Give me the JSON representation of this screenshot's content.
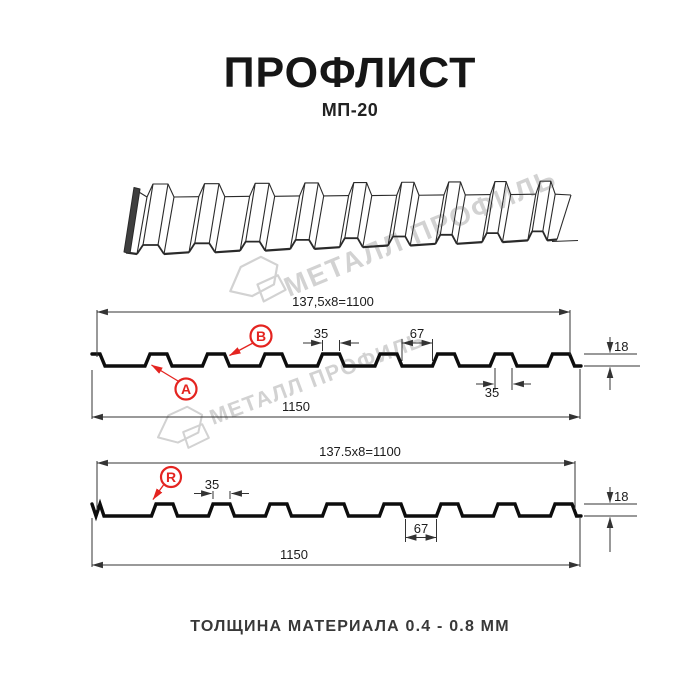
{
  "header": {
    "title": "ПРОФЛИСТ",
    "subtitle": "МП-20"
  },
  "watermark": {
    "text": "МЕТАЛЛ ПРОФИЛЬ"
  },
  "section_top": {
    "modules": "137,5x8=1100",
    "overall": "1150",
    "crest_top": "35",
    "valley": "67",
    "height": "18",
    "crest_base": "35",
    "label_a": "A",
    "label_b": "B"
  },
  "section_bottom": {
    "modules": "137.5x8=1100",
    "overall": "1150",
    "crest_top": "35",
    "valley": "67",
    "height": "18",
    "label_r": "R"
  },
  "footer": {
    "text": "ТОЛЩИНА МАТЕРИАЛА 0.4 - 0.8 ММ"
  },
  "colors": {
    "accent_red": "#e42420",
    "line": "#1c1c1c",
    "watermark": "#d2d2d2"
  }
}
